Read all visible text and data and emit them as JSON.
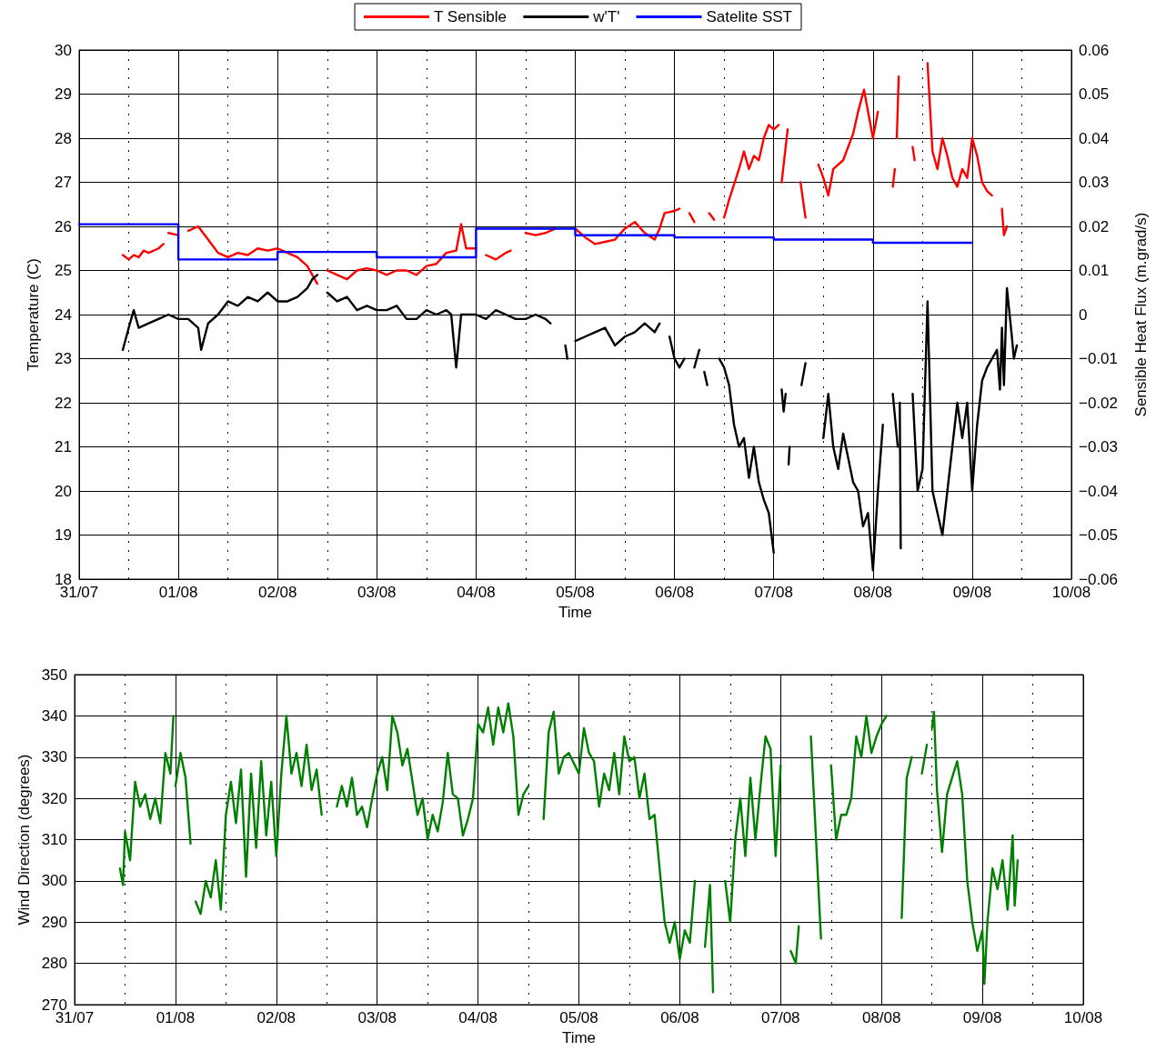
{
  "chart_data": [
    {
      "type": "line",
      "xlabel": "Time",
      "ylabel": "Temperature (C)",
      "y2label": "Sensible Heat Flux (m.grad/s)",
      "xlim": [
        "--07-31T00:00",
        "--08-10T00:00"
      ],
      "xticks": [
        {
          "value": "--07-31T00:00",
          "label": "31/07"
        },
        {
          "value": "--07-31T12:00",
          "label": null
        },
        {
          "value": "--08-01T00:00",
          "label": "01/08"
        },
        {
          "value": "--08-01T12:00",
          "label": null
        },
        {
          "value": "--08-02T00:00",
          "label": "02/08"
        },
        {
          "value": "--08-02T12:00",
          "label": null
        },
        {
          "value": "--08-03T00:00",
          "label": "03/08"
        },
        {
          "value": "--08-03T12:00",
          "label": null
        },
        {
          "value": "--08-04T00:00",
          "label": "04/08"
        },
        {
          "value": "--08-04T12:00",
          "label": null
        },
        {
          "value": "--08-05T00:00",
          "label": "05/08"
        },
        {
          "value": "--08-05T12:00",
          "label": null
        },
        {
          "value": "--08-06T00:00",
          "label": "06/08"
        },
        {
          "value": "--08-06T12:00",
          "label": null
        },
        {
          "value": "--08-07T00:00",
          "label": "07/08"
        },
        {
          "value": "--08-07T12:00",
          "label": null
        },
        {
          "value": "--08-08T00:00",
          "label": "08/08"
        },
        {
          "value": "--08-08T12:00",
          "label": null
        },
        {
          "value": "--08-09T00:00",
          "label": "09/08"
        },
        {
          "value": "--08-09T12:00",
          "label": null
        },
        {
          "value": "--08-10T00:00",
          "label": "10/08"
        }
      ],
      "ylim": [
        18,
        30
      ],
      "yticks": [
        18,
        19,
        20,
        21,
        22,
        23,
        24,
        25,
        26,
        27,
        28,
        29,
        30
      ],
      "y2lim": [
        -0.06,
        0.06
      ],
      "y2ticks": [
        {
          "value": -0.06,
          "label": "−0.06"
        },
        {
          "value": -0.05,
          "label": "−0.05"
        },
        {
          "value": -0.04,
          "label": "−0.04"
        },
        {
          "value": -0.03,
          "label": "−0.03"
        },
        {
          "value": -0.02,
          "label": "−0.02"
        },
        {
          "value": -0.01,
          "label": "−0.01"
        },
        0,
        0.01,
        0.02,
        0.03,
        0.04,
        0.05,
        0.06
      ],
      "grid": true,
      "legend": "top",
      "marker": "none",
      "series": [
        {
          "name": "T Sensible",
          "color": "#ff0000",
          "x": [
            "--07-31T10:34",
            "--07-31T12:00",
            "--07-31T13:12",
            "--07-31T14:24",
            "--07-31T15:36",
            "--07-31T16:48",
            "--07-31T19:12",
            "--07-31T20:24",
            "--07-31T21:07",
            "--07-31T21:36",
            "--08-01T00:00",
            "--08-01T01:12",
            "--08-01T02:24",
            "--08-01T04:48",
            "--08-01T07:12",
            "--08-01T09:36",
            "--08-01T12:00",
            "--08-01T14:24",
            "--08-01T16:48",
            "--08-01T19:12",
            "--08-01T21:36",
            "--08-02T00:00",
            "--08-02T02:24",
            "--08-02T04:48",
            "--08-02T07:12",
            "--08-02T08:24",
            "--08-02T09:36",
            "--08-02T10:48",
            "--08-02T12:00",
            "--08-02T14:24",
            "--08-02T16:48",
            "--08-02T19:12",
            "--08-02T21:36",
            "--08-03T00:00",
            "--08-03T02:24",
            "--08-03T04:48",
            "--08-03T07:12",
            "--08-03T09:36",
            "--08-03T12:00",
            "--08-03T14:24",
            "--08-03T16:48",
            "--08-03T19:12",
            "--08-03T20:24",
            "--08-03T21:36",
            "--08-04T00:00",
            "--08-04T01:12",
            "--08-04T02:24",
            "--08-04T04:48",
            "--08-04T07:12",
            "--08-04T08:24",
            "--08-04T10:05",
            "--08-04T12:00",
            "--08-04T14:24",
            "--08-04T16:48",
            "--08-04T19:12",
            "--08-04T20:24",
            "--08-05T00:00",
            "--08-05T02:24",
            "--08-05T04:48",
            "--08-05T07:12",
            "--08-05T09:36",
            "--08-05T12:00",
            "--08-05T14:24",
            "--08-05T16:48",
            "--08-05T19:12",
            "--08-05T20:24",
            "--08-05T21:36",
            "--08-06T00:00",
            "--08-06T01:12",
            "--08-06T02:24",
            "--08-06T03:36",
            "--08-06T04:48",
            "--08-06T06:00",
            "--08-06T08:24",
            "--08-06T09:36",
            "--08-06T10:48",
            "--08-06T12:00",
            "--08-06T13:12",
            "--08-06T15:36",
            "--08-06T16:48",
            "--08-06T18:00",
            "--08-06T19:12",
            "--08-06T20:24",
            "--08-06T21:36",
            "--08-06T22:48",
            "--08-07T00:00",
            "--08-07T01:12",
            "--08-07T01:26",
            "--08-07T01:55",
            "--08-07T03:22",
            "--08-07T03:50",
            "--08-07T06:29",
            "--08-07T07:41",
            "--08-07T09:07",
            "--08-07T10:48",
            "--08-07T12:00",
            "--08-07T13:12",
            "--08-07T14:24",
            "--08-07T16:48",
            "--08-07T19:12",
            "--08-07T20:24",
            "--08-07T21:50",
            "--08-08T00:00",
            "--08-08T01:12",
            "--08-08T02:53",
            "--08-08T04:48",
            "--08-08T05:17",
            "--08-08T05:31",
            "--08-08T05:46",
            "--08-08T06:14",
            "--08-08T07:12",
            "--08-08T09:36",
            "--08-08T10:05",
            "--08-08T10:48",
            "--08-08T13:12",
            "--08-08T14:24",
            "--08-08T15:36",
            "--08-08T16:48",
            "--08-08T18:00",
            "--08-08T19:12",
            "--08-08T20:24",
            "--08-08T21:36",
            "--08-08T22:48",
            "--08-09T00:00",
            "--08-09T01:12",
            "--08-09T02:24",
            "--08-09T03:36",
            "--08-09T04:48",
            "--08-09T06:00",
            "--08-09T07:12",
            "--08-09T07:41",
            "--08-09T08:24"
          ],
          "values": [
            25.35,
            25.25,
            25.35,
            25.3,
            25.45,
            25.4,
            25.5,
            25.6,
            null,
            25.85,
            25.8,
            null,
            25.9,
            26.0,
            25.7,
            25.4,
            25.3,
            25.4,
            25.35,
            25.5,
            25.45,
            25.5,
            25.4,
            25.3,
            25.1,
            24.9,
            24.7,
            null,
            25.0,
            24.9,
            24.8,
            25.0,
            25.05,
            25.0,
            24.9,
            25.0,
            25.0,
            24.9,
            25.1,
            25.15,
            25.4,
            25.45,
            26.05,
            25.5,
            25.5,
            null,
            25.35,
            25.25,
            25.4,
            25.45,
            null,
            25.85,
            25.8,
            25.85,
            25.95,
            null,
            25.95,
            25.75,
            25.6,
            25.65,
            25.7,
            25.95,
            26.1,
            25.85,
            25.7,
            25.95,
            26.3,
            26.35,
            26.4,
            null,
            26.3,
            26.1,
            null,
            26.3,
            26.15,
            null,
            26.2,
            26.6,
            27.3,
            27.7,
            27.3,
            27.6,
            27.5,
            28.0,
            28.3,
            28.2,
            28.3,
            null,
            27.0,
            28.2,
            null,
            27.0,
            26.2,
            null,
            27.4,
            27.1,
            26.7,
            27.3,
            27.5,
            28.1,
            28.6,
            29.1,
            28.0,
            28.6,
            null,
            26.9,
            27.3,
            null,
            28.0,
            29.4,
            null,
            27.8,
            27.5,
            null,
            29.7,
            27.7,
            27.3,
            28.0,
            27.6,
            27.1,
            26.9,
            27.3,
            27.1,
            28.0,
            27.6,
            27.0,
            26.8,
            26.7,
            null,
            26.4,
            25.8,
            26.0
          ]
        },
        {
          "name": "w'T'",
          "color": "#000000",
          "axis": "y2",
          "x": [
            "--07-31T10:34",
            "--07-31T12:00",
            "--07-31T13:12",
            "--07-31T14:24",
            "--07-31T16:48",
            "--07-31T19:12",
            "--07-31T21:36",
            "--08-01T00:00",
            "--08-01T02:24",
            "--08-01T04:48",
            "--08-01T05:31",
            "--08-01T07:12",
            "--08-01T09:36",
            "--08-01T12:00",
            "--08-01T14:24",
            "--08-01T16:48",
            "--08-01T19:12",
            "--08-01T21:36",
            "--08-02T00:00",
            "--08-02T02:24",
            "--08-02T04:48",
            "--08-02T07:12",
            "--08-02T08:24",
            "--08-02T09:36",
            "--08-02T10:48",
            "--08-02T12:00",
            "--08-02T14:24",
            "--08-02T16:48",
            "--08-02T19:12",
            "--08-02T21:36",
            "--08-03T00:00",
            "--08-03T02:24",
            "--08-03T04:48",
            "--08-03T07:12",
            "--08-03T09:36",
            "--08-03T12:00",
            "--08-03T14:24",
            "--08-03T16:48",
            "--08-03T18:00",
            "--08-03T19:12",
            "--08-03T20:24",
            "--08-03T21:36",
            "--08-04T00:00",
            "--08-04T02:24",
            "--08-04T04:48",
            "--08-04T07:12",
            "--08-04T09:36",
            "--08-04T12:00",
            "--08-04T14:24",
            "--08-04T16:48",
            "--08-04T18:00",
            "--08-04T19:12",
            "--08-04T21:36",
            "--08-04T22:05",
            "--08-04T22:48",
            "--08-05T00:00",
            "--08-05T02:24",
            "--08-05T04:48",
            "--08-05T07:12",
            "--08-05T09:36",
            "--08-05T12:00",
            "--08-05T14:24",
            "--08-05T16:48",
            "--08-05T19:12",
            "--08-05T20:24",
            "--08-05T21:36",
            "--08-05T22:48",
            "--08-06T00:00",
            "--08-06T01:12",
            "--08-06T02:24",
            "--08-06T03:36",
            "--08-06T04:48",
            "--08-06T06:00",
            "--08-06T06:43",
            "--08-06T07:12",
            "--08-06T07:55",
            "--08-06T09:36",
            "--08-06T10:48",
            "--08-06T12:00",
            "--08-06T13:12",
            "--08-06T14:24",
            "--08-06T15:36",
            "--08-06T16:48",
            "--08-06T18:00",
            "--08-06T19:12",
            "--08-06T20:24",
            "--08-06T21:36",
            "--08-06T22:48",
            "--08-07T00:00",
            "--08-07T00:58",
            "--08-07T01:55",
            "--08-07T02:24",
            "--08-07T02:53",
            "--08-07T03:07",
            "--08-07T03:36",
            "--08-07T03:50",
            "--08-07T04:48",
            "--08-07T06:43",
            "--08-07T07:41",
            "--08-07T09:36",
            "--08-07T12:00",
            "--08-07T13:12",
            "--08-07T14:24",
            "--08-07T15:36",
            "--08-07T16:48",
            "--08-07T19:12",
            "--08-07T20:24",
            "--08-07T21:36",
            "--08-07T22:48",
            "--08-08T00:00",
            "--08-08T01:12",
            "--08-08T02:24",
            "--08-08T03:36",
            "--08-08T04:48",
            "--08-08T06:00",
            "--08-08T06:14",
            "--08-08T06:29",
            "--08-08T06:43",
            "--08-08T08:24",
            "--08-08T09:36",
            "--08-08T10:48",
            "--08-08T12:00",
            "--08-08T13:12",
            "--08-08T14:24",
            "--08-08T15:36",
            "--08-08T16:48",
            "--08-08T18:00",
            "--08-08T19:12",
            "--08-08T20:24",
            "--08-08T21:36",
            "--08-08T22:48",
            "--08-09T00:00",
            "--08-09T01:12",
            "--08-09T02:24",
            "--08-09T03:36",
            "--08-09T04:48",
            "--08-09T06:00",
            "--08-09T06:43",
            "--08-09T07:12",
            "--08-09T07:41",
            "--08-09T08:24",
            "--08-09T09:36",
            "--08-09T10:05",
            "--08-09T10:48"
          ],
          "values": [
            -0.008,
            -0.003,
            0.001,
            -0.003,
            -0.002,
            -0.001,
            0.0,
            -0.001,
            -0.001,
            -0.003,
            -0.008,
            -0.002,
            0.0,
            0.003,
            0.002,
            0.004,
            0.003,
            0.005,
            0.003,
            0.003,
            0.004,
            0.006,
            0.008,
            0.009,
            null,
            0.005,
            0.003,
            0.004,
            0.001,
            0.002,
            0.001,
            0.001,
            0.002,
            -0.001,
            -0.001,
            0.001,
            0.0,
            0.001,
            0.0,
            -0.012,
            0.0,
            0.0,
            0.0,
            -0.001,
            0.001,
            0.0,
            -0.001,
            -0.001,
            0.0,
            -0.001,
            -0.002,
            null,
            -0.007,
            -0.01,
            null,
            -0.006,
            -0.005,
            -0.004,
            -0.003,
            -0.007,
            -0.005,
            -0.004,
            -0.002,
            -0.004,
            -0.002,
            null,
            -0.005,
            -0.01,
            -0.012,
            -0.01,
            null,
            -0.012,
            -0.008,
            null,
            -0.013,
            -0.016,
            null,
            -0.01,
            -0.012,
            -0.016,
            -0.025,
            -0.03,
            -0.028,
            -0.037,
            -0.03,
            -0.038,
            -0.042,
            -0.045,
            -0.054,
            null,
            -0.017,
            -0.022,
            -0.018,
            null,
            -0.034,
            -0.03,
            null,
            -0.016,
            -0.011,
            null,
            -0.028,
            -0.018,
            -0.03,
            -0.035,
            -0.027,
            -0.038,
            -0.04,
            -0.048,
            -0.045,
            -0.058,
            -0.04,
            -0.025,
            null,
            -0.018,
            -0.03,
            null,
            -0.02,
            -0.053,
            null,
            -0.018,
            -0.04,
            -0.035,
            0.003,
            -0.04,
            -0.045,
            -0.05,
            -0.04,
            -0.03,
            -0.02,
            -0.028,
            -0.02,
            -0.04,
            -0.025,
            -0.015,
            -0.012,
            -0.01,
            -0.008,
            -0.017,
            -0.003,
            -0.016,
            0.006,
            -0.005,
            -0.01,
            -0.007
          ]
        },
        {
          "name": "Satelite SST",
          "color": "#0000ff",
          "type": "step",
          "x": [
            "--07-31T00:00",
            "--08-01T00:00",
            "--08-02T00:00",
            "--08-03T00:00",
            "--08-04T00:00",
            "--08-05T00:00",
            "--08-06T00:00",
            "--08-07T00:00",
            "--08-08T00:00",
            "--08-09T00:00"
          ],
          "values": [
            26.05,
            25.25,
            25.42,
            25.3,
            25.95,
            25.8,
            25.75,
            25.7,
            25.63,
            25.63
          ]
        }
      ]
    },
    {
      "type": "line",
      "xlabel": "Time",
      "ylabel": "Wind Direction (degrees)",
      "xlim": [
        "--07-31T00:00",
        "--08-10T00:00"
      ],
      "xticks": [
        {
          "value": "--07-31T00:00",
          "label": "31/07"
        },
        {
          "value": "--07-31T12:00",
          "label": null
        },
        {
          "value": "--08-01T00:00",
          "label": "01/08"
        },
        {
          "value": "--08-01T12:00",
          "label": null
        },
        {
          "value": "--08-02T00:00",
          "label": "02/08"
        },
        {
          "value": "--08-02T12:00",
          "label": null
        },
        {
          "value": "--08-03T00:00",
          "label": "03/08"
        },
        {
          "value": "--08-03T12:00",
          "label": null
        },
        {
          "value": "--08-04T00:00",
          "label": "04/08"
        },
        {
          "value": "--08-04T12:00",
          "label": null
        },
        {
          "value": "--08-05T00:00",
          "label": "05/08"
        },
        {
          "value": "--08-05T12:00",
          "label": null
        },
        {
          "value": "--08-06T00:00",
          "label": "06/08"
        },
        {
          "value": "--08-06T12:00",
          "label": null
        },
        {
          "value": "--08-07T00:00",
          "label": "07/08"
        },
        {
          "value": "--08-07T12:00",
          "label": null
        },
        {
          "value": "--08-08T00:00",
          "label": "08/08"
        },
        {
          "value": "--08-08T12:00",
          "label": null
        },
        {
          "value": "--08-09T00:00",
          "label": "09/08"
        },
        {
          "value": "--08-09T12:00",
          "label": null
        },
        {
          "value": "--08-10T00:00",
          "label": "10/08"
        }
      ],
      "ylim": [
        270,
        350
      ],
      "yticks": [
        270,
        280,
        290,
        300,
        310,
        320,
        330,
        340,
        350
      ],
      "grid": true,
      "marker": "none",
      "series": [
        {
          "color": "#008000",
          "x": [
            "--07-31T10:48",
            "--07-31T11:31",
            "--07-31T12:00",
            "--07-31T13:12",
            "--07-31T14:24",
            "--07-31T15:36",
            "--07-31T16:48",
            "--07-31T18:00",
            "--07-31T19:12",
            "--07-31T20:24",
            "--07-31T21:36",
            "--07-31T22:48",
            "--07-31T23:31",
            "--07-31T23:46",
            "--08-01T00:00",
            "--08-01T01:12",
            "--08-01T02:24",
            "--08-01T03:36",
            "--08-01T04:05",
            "--08-01T04:48",
            "--08-01T06:00",
            "--08-01T07:12",
            "--08-01T08:24",
            "--08-01T09:36",
            "--08-01T10:48",
            "--08-01T12:00",
            "--08-01T13:12",
            "--08-01T14:24",
            "--08-01T15:36",
            "--08-01T16:48",
            "--08-01T18:00",
            "--08-01T19:12",
            "--08-01T20:24",
            "--08-01T21:36",
            "--08-01T22:48",
            "--08-02T00:00",
            "--08-02T01:12",
            "--08-02T02:24",
            "--08-02T03:36",
            "--08-02T04:48",
            "--08-02T06:00",
            "--08-02T07:12",
            "--08-02T08:24",
            "--08-02T09:36",
            "--08-02T10:48",
            "--08-02T12:00",
            "--08-02T14:24",
            "--08-02T15:36",
            "--08-02T16:48",
            "--08-02T18:00",
            "--08-02T19:12",
            "--08-02T20:24",
            "--08-02T21:36",
            "--08-02T22:48",
            "--08-03T00:00",
            "--08-03T01:12",
            "--08-03T02:24",
            "--08-03T03:36",
            "--08-03T04:48",
            "--08-03T06:00",
            "--08-03T07:12",
            "--08-03T08:24",
            "--08-03T09:36",
            "--08-03T10:48",
            "--08-03T12:00",
            "--08-03T13:12",
            "--08-03T14:24",
            "--08-03T15:36",
            "--08-03T16:48",
            "--08-03T18:00",
            "--08-03T19:12",
            "--08-03T20:24",
            "--08-03T21:36",
            "--08-03T22:48",
            "--08-04T00:00",
            "--08-04T01:12",
            "--08-04T02:24",
            "--08-04T03:36",
            "--08-04T04:48",
            "--08-04T06:00",
            "--08-04T07:12",
            "--08-04T08:24",
            "--08-04T09:36",
            "--08-04T10:48",
            "--08-04T12:00",
            "--08-04T14:24",
            "--08-04T15:36",
            "--08-04T16:48",
            "--08-04T18:00",
            "--08-04T19:12",
            "--08-04T20:24",
            "--08-04T21:36",
            "--08-05T00:00",
            "--08-05T01:12",
            "--08-05T02:24",
            "--08-05T03:36",
            "--08-05T04:48",
            "--08-05T06:00",
            "--08-05T07:12",
            "--08-05T08:24",
            "--08-05T09:36",
            "--08-05T10:48",
            "--08-05T12:00",
            "--08-05T13:12",
            "--08-05T14:24",
            "--08-05T15:36",
            "--08-05T16:48",
            "--08-05T18:00",
            "--08-05T19:12",
            "--08-05T20:24",
            "--08-05T21:36",
            "--08-05T22:48",
            "--08-06T00:00",
            "--08-06T01:12",
            "--08-06T02:24",
            "--08-06T03:36",
            "--08-06T04:48",
            "--08-06T06:00",
            "--08-06T07:12",
            "--08-06T07:55",
            "--08-06T09:36",
            "--08-06T10:48",
            "--08-06T12:00",
            "--08-06T13:12",
            "--08-06T14:24",
            "--08-06T15:36",
            "--08-06T16:48",
            "--08-06T18:00",
            "--08-06T19:12",
            "--08-06T20:24",
            "--08-06T21:36",
            "--08-06T22:48",
            "--08-07T00:00",
            "--08-07T01:12",
            "--08-07T02:24",
            "--08-07T03:36",
            "--08-07T04:19",
            "--08-07T06:00",
            "--08-07T07:12",
            "--08-07T09:36",
            "--08-07T10:48",
            "--08-07T12:00",
            "--08-07T13:12",
            "--08-07T14:24",
            "--08-07T15:36",
            "--08-07T16:48",
            "--08-07T18:00",
            "--08-07T19:12",
            "--08-07T20:24",
            "--08-07T21:36",
            "--08-07T22:48",
            "--08-08T00:00",
            "--08-08T01:12",
            "--08-08T02:24",
            "--08-08T04:48",
            "--08-08T06:00",
            "--08-08T07:12",
            "--08-08T08:24",
            "--08-08T09:36",
            "--08-08T10:48",
            "--08-08T11:31",
            "--08-08T12:00",
            "--08-08T12:29",
            "--08-08T13:12",
            "--08-08T14:24",
            "--08-08T15:36",
            "--08-08T16:48",
            "--08-08T18:00",
            "--08-08T19:12",
            "--08-08T20:24",
            "--08-08T21:36",
            "--08-08T22:48",
            "--08-09T00:00",
            "--08-09T00:29",
            "--08-09T01:12",
            "--08-09T02:24",
            "--08-09T03:36",
            "--08-09T04:48",
            "--08-09T06:00",
            "--08-09T07:12",
            "--08-09T07:41",
            "--08-09T08:24"
          ],
          "values": [
            303,
            299,
            312,
            305,
            324,
            318,
            321,
            315,
            320,
            314,
            331,
            326,
            340,
            null,
            323,
            331,
            325,
            309,
            null,
            295,
            292,
            300,
            296,
            305,
            293,
            316,
            324,
            314,
            327,
            301,
            326,
            308,
            329,
            311,
            324,
            306,
            326,
            340,
            326,
            331,
            323,
            333,
            322,
            327,
            316,
            null,
            318,
            323,
            318,
            325,
            316,
            318,
            313,
            320,
            326,
            330,
            322,
            340,
            336,
            328,
            332,
            324,
            316,
            320,
            310,
            316,
            312,
            319,
            331,
            321,
            320,
            311,
            315,
            320,
            338,
            336,
            342,
            333,
            342,
            336,
            343,
            335,
            316,
            321,
            323,
            null,
            315,
            336,
            341,
            326,
            330,
            331,
            326,
            337,
            331,
            329,
            318,
            326,
            322,
            331,
            321,
            335,
            329,
            330,
            320,
            326,
            315,
            316,
            303,
            290,
            285,
            290,
            281,
            288,
            285,
            300,
            null,
            284,
            299,
            273,
            null,
            300,
            290,
            310,
            320,
            306,
            325,
            310,
            323,
            335,
            332,
            306,
            328,
            null,
            283,
            280,
            289,
            null,
            335,
            286,
            null,
            328,
            310,
            316,
            316,
            320,
            335,
            330,
            340,
            331,
            335,
            338,
            340,
            null,
            291,
            325,
            330,
            null,
            326,
            333,
            null,
            337,
            341,
            322,
            307,
            321,
            325,
            329,
            321,
            300,
            290,
            283,
            288,
            275,
            290,
            303,
            298,
            305,
            293,
            311,
            294,
            305
          ]
        }
      ]
    }
  ]
}
